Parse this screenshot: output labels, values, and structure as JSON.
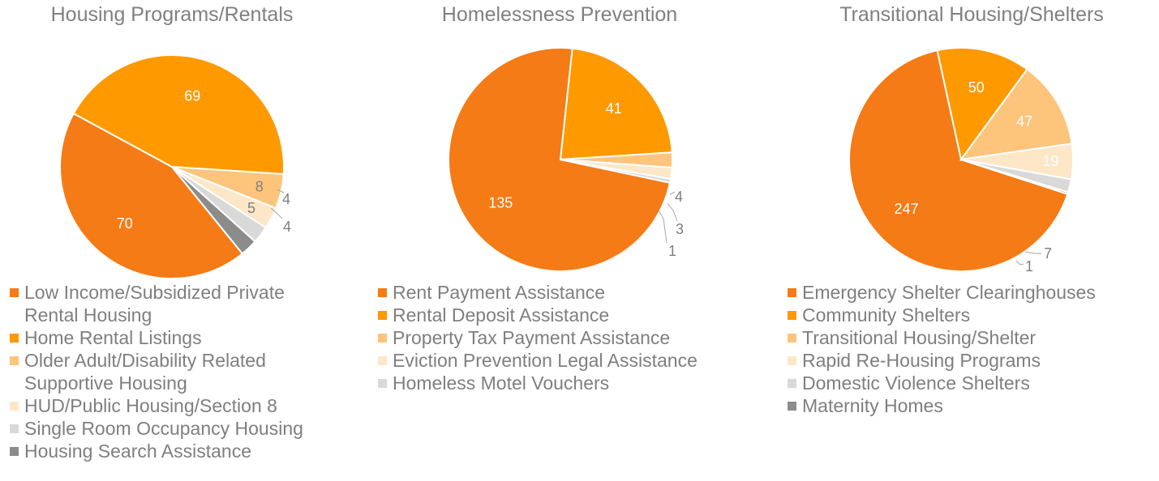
{
  "chart_data": [
    {
      "type": "pie",
      "title": "Housing Programs/Rentals",
      "slices": [
        {
          "label": "Low Income/Subsidized Private Rental Housing",
          "legend_lines": [
            "Low Income/Subsidized Private",
            "Rental Housing"
          ],
          "value": 70,
          "color": "#f47b16"
        },
        {
          "label": "Home Rental Listings",
          "legend_lines": [
            "Home Rental Listings"
          ],
          "value": 69,
          "color": "#fe9900"
        },
        {
          "label": "Older Adult/Disability Related Supportive Housing",
          "legend_lines": [
            "Older Adult/Disability Related",
            "Supportive Housing"
          ],
          "value": 8,
          "color": "#fdc47c"
        },
        {
          "label": "HUD/Public Housing/Section 8",
          "legend_lines": [
            "HUD/Public Housing/Section 8"
          ],
          "value": 5,
          "color": "#fde7c7"
        },
        {
          "label": "Single Room Occupancy Housing",
          "legend_lines": [
            "Single Room Occupancy Housing"
          ],
          "value": 4,
          "color": "#d9d9d9"
        },
        {
          "label": "Housing Search Assistance",
          "legend_lines": [
            "Housing Search Assistance"
          ],
          "value": 4,
          "color": "#8c8c8c"
        }
      ]
    },
    {
      "type": "pie",
      "title": "Homelessness Prevention",
      "slices": [
        {
          "label": "Rent Payment Assistance",
          "legend_lines": [
            "Rent Payment Assistance"
          ],
          "value": 135,
          "color": "#f47b16"
        },
        {
          "label": "Rental Deposit Assistance",
          "legend_lines": [
            "Rental Deposit Assistance"
          ],
          "value": 41,
          "color": "#fe9900"
        },
        {
          "label": "Property Tax Payment Assistance",
          "legend_lines": [
            "Property Tax Payment Assistance"
          ],
          "value": 4,
          "color": "#fdc47c"
        },
        {
          "label": "Eviction Prevention Legal Assistance",
          "legend_lines": [
            "Eviction Prevention Legal Assistance"
          ],
          "value": 3,
          "color": "#fde7c7"
        },
        {
          "label": "Homeless Motel Vouchers",
          "legend_lines": [
            "Homeless Motel Vouchers"
          ],
          "value": 1,
          "color": "#d9d9d9"
        }
      ]
    },
    {
      "type": "pie",
      "title": "Transitional Housing/Shelters",
      "slices": [
        {
          "label": "Emergency Shelter Clearinghouses",
          "legend_lines": [
            "Emergency Shelter Clearinghouses"
          ],
          "value": 247,
          "color": "#f47b16"
        },
        {
          "label": "Community Shelters",
          "legend_lines": [
            "Community Shelters"
          ],
          "value": 50,
          "color": "#fe9900"
        },
        {
          "label": "Transitional Housing/Shelter",
          "legend_lines": [
            "Transitional Housing/Shelter"
          ],
          "value": 47,
          "color": "#fdc47c"
        },
        {
          "label": "Rapid Re-Housing Programs",
          "legend_lines": [
            "Rapid Re-Housing Programs"
          ],
          "value": 19,
          "color": "#fde7c7"
        },
        {
          "label": "Domestic Violence Shelters",
          "legend_lines": [
            "Domestic Violence Shelters"
          ],
          "value": 7,
          "color": "#d9d9d9"
        },
        {
          "label": "Maternity Homes",
          "legend_lines": [
            "Maternity Homes"
          ],
          "value": 1,
          "color": "#8c8c8c"
        }
      ]
    }
  ]
}
